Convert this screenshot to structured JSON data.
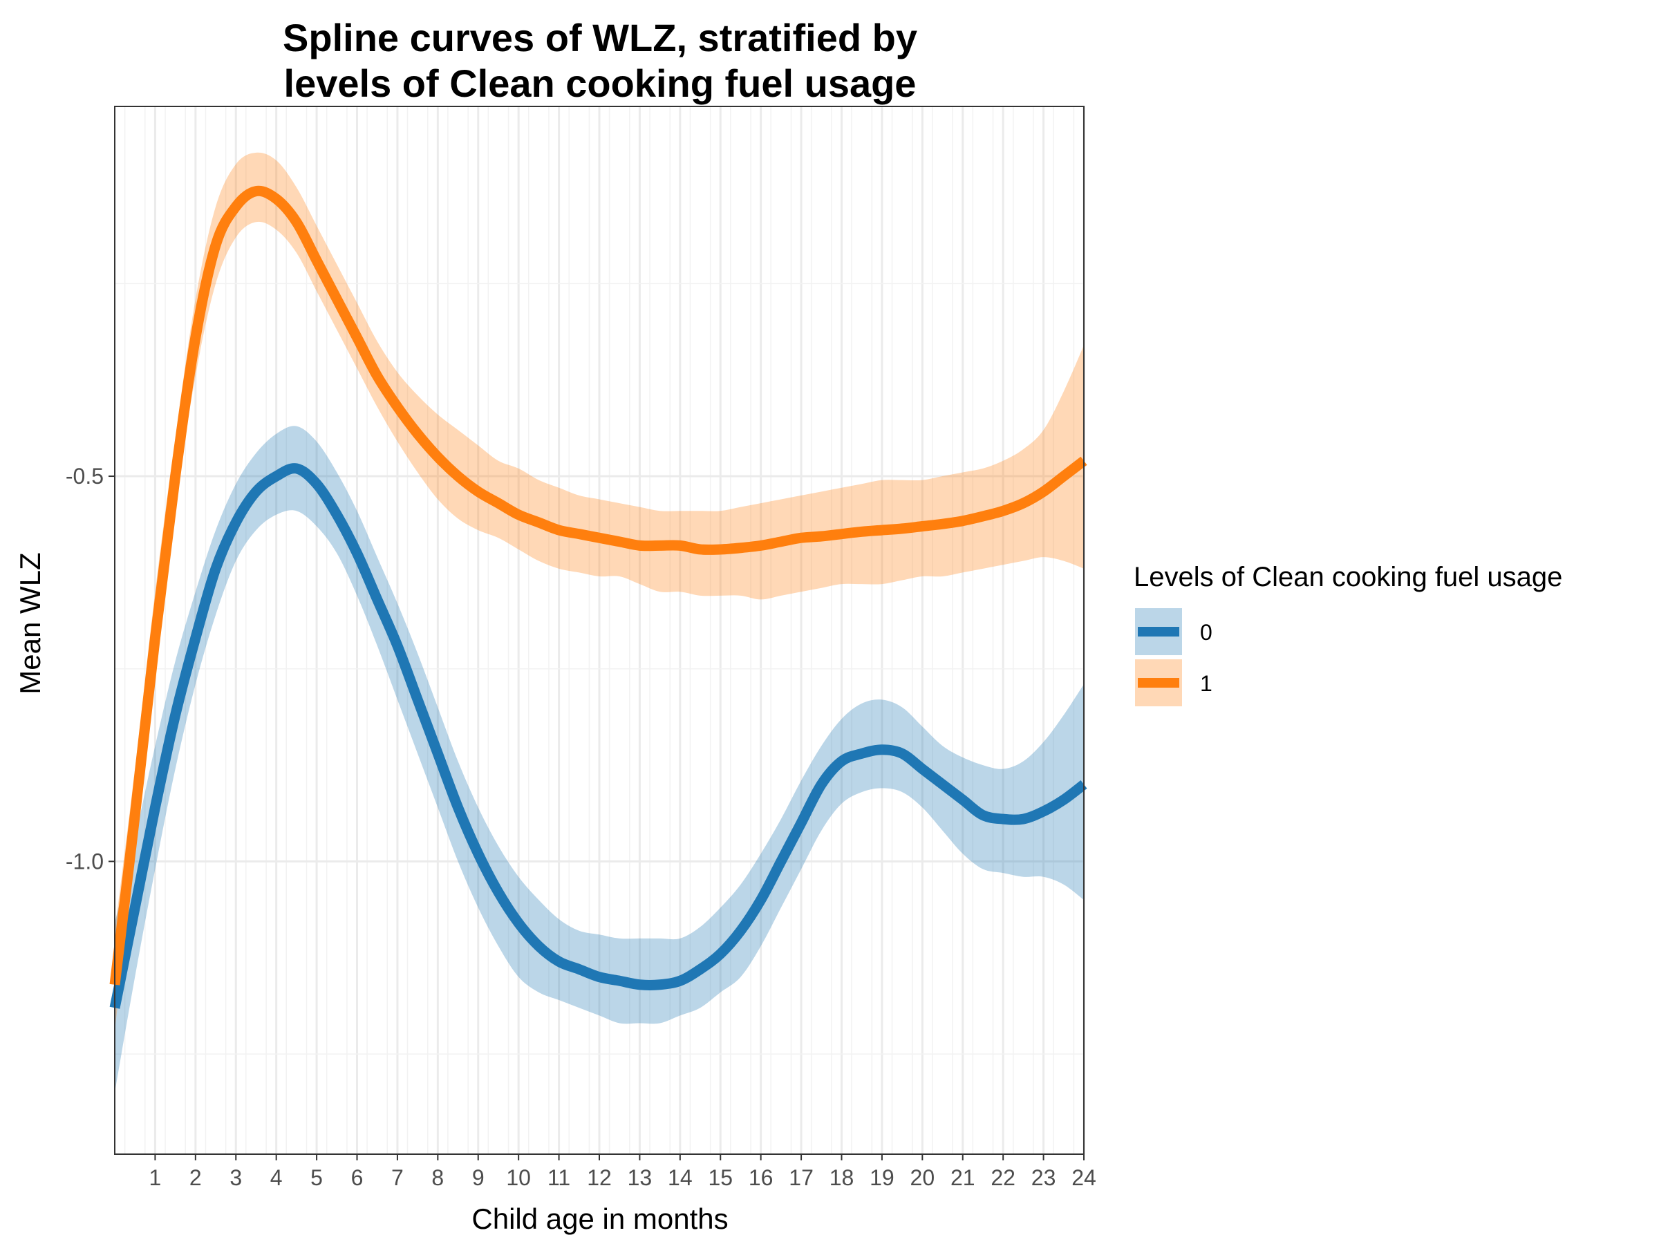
{
  "chart_data": {
    "type": "line",
    "title_lines": [
      "Spline curves of WLZ, stratified by",
      "levels of Clean cooking fuel usage"
    ],
    "xlabel": "Child age in months",
    "ylabel": "Mean WLZ",
    "xlim": [
      0,
      24
    ],
    "ylim": [
      -1.38,
      -0.02
    ],
    "x_ticks": [
      1,
      2,
      3,
      4,
      5,
      6,
      7,
      8,
      9,
      10,
      11,
      12,
      13,
      14,
      15,
      16,
      17,
      18,
      19,
      20,
      21,
      22,
      23,
      24
    ],
    "x_tick_labels": [
      "1",
      "2",
      "3",
      "4",
      "5",
      "6",
      "7",
      "8",
      "9",
      "10",
      "11",
      "12",
      "13",
      "14",
      "15",
      "16",
      "17",
      "18",
      "19",
      "20",
      "21",
      "22",
      "23",
      "24"
    ],
    "y_ticks": [
      -0.5,
      -1.0
    ],
    "y_tick_labels": [
      "-0.5",
      "-1.0"
    ],
    "y_minor_ticks": [
      -0.25,
      -0.75,
      -1.25
    ],
    "grid": true,
    "legend": {
      "title": "Levels of Clean cooking fuel usage",
      "position": "right"
    },
    "series": [
      {
        "name": "0",
        "color": "#1f77b4",
        "ribbon_color": "#1f77b4",
        "x": [
          0,
          0.5,
          1,
          1.5,
          2,
          2.5,
          3,
          3.5,
          4,
          4.5,
          5,
          5.5,
          6,
          6.5,
          7,
          7.5,
          8,
          8.5,
          9,
          9.5,
          10,
          10.5,
          11,
          11.5,
          12,
          12.5,
          13,
          13.5,
          14,
          14.5,
          15,
          15.5,
          16,
          16.5,
          17,
          17.5,
          18,
          18.5,
          19,
          19.5,
          20,
          20.5,
          21,
          21.5,
          22,
          22.5,
          23,
          23.5,
          24
        ],
        "y": [
          -1.19,
          -1.06,
          -0.93,
          -0.81,
          -0.71,
          -0.62,
          -0.56,
          -0.52,
          -0.5,
          -0.49,
          -0.51,
          -0.55,
          -0.6,
          -0.66,
          -0.72,
          -0.79,
          -0.86,
          -0.93,
          -0.99,
          -1.04,
          -1.08,
          -1.11,
          -1.13,
          -1.14,
          -1.15,
          -1.155,
          -1.16,
          -1.16,
          -1.155,
          -1.14,
          -1.12,
          -1.09,
          -1.05,
          -1.0,
          -0.95,
          -0.9,
          -0.87,
          -0.86,
          -0.855,
          -0.86,
          -0.88,
          -0.9,
          -0.92,
          -0.94,
          -0.945,
          -0.945,
          -0.935,
          -0.92,
          -0.9
        ],
        "lower": [
          -1.3,
          -1.15,
          -1.01,
          -0.88,
          -0.77,
          -0.68,
          -0.61,
          -0.57,
          -0.55,
          -0.545,
          -0.565,
          -0.6,
          -0.655,
          -0.72,
          -0.79,
          -0.86,
          -0.93,
          -1.0,
          -1.06,
          -1.11,
          -1.15,
          -1.17,
          -1.18,
          -1.19,
          -1.2,
          -1.21,
          -1.21,
          -1.21,
          -1.2,
          -1.19,
          -1.17,
          -1.15,
          -1.11,
          -1.06,
          -1.01,
          -0.96,
          -0.925,
          -0.91,
          -0.905,
          -0.91,
          -0.93,
          -0.96,
          -0.99,
          -1.01,
          -1.015,
          -1.02,
          -1.02,
          -1.03,
          -1.05
        ],
        "upper": [
          -1.08,
          -0.97,
          -0.85,
          -0.74,
          -0.65,
          -0.57,
          -0.51,
          -0.47,
          -0.445,
          -0.435,
          -0.455,
          -0.495,
          -0.545,
          -0.605,
          -0.665,
          -0.73,
          -0.8,
          -0.87,
          -0.93,
          -0.98,
          -1.02,
          -1.05,
          -1.075,
          -1.09,
          -1.095,
          -1.1,
          -1.1,
          -1.1,
          -1.1,
          -1.085,
          -1.06,
          -1.03,
          -0.99,
          -0.945,
          -0.895,
          -0.85,
          -0.815,
          -0.795,
          -0.79,
          -0.8,
          -0.825,
          -0.85,
          -0.865,
          -0.875,
          -0.88,
          -0.87,
          -0.845,
          -0.81,
          -0.77
        ]
      },
      {
        "name": "1",
        "color": "#ff7f0e",
        "ribbon_color": "#ff7f0e",
        "x": [
          0,
          0.5,
          1,
          1.5,
          2,
          2.5,
          3,
          3.5,
          4,
          4.5,
          5,
          5.5,
          6,
          6.5,
          7,
          7.5,
          8,
          8.5,
          9,
          9.5,
          10,
          10.5,
          11,
          11.5,
          12,
          12.5,
          13,
          13.5,
          14,
          14.5,
          15,
          15.5,
          16,
          16.5,
          17,
          17.5,
          18,
          18.5,
          19,
          19.5,
          20,
          20.5,
          21,
          21.5,
          22,
          22.5,
          23,
          23.5,
          24
        ],
        "y": [
          -1.16,
          -0.94,
          -0.71,
          -0.5,
          -0.32,
          -0.2,
          -0.15,
          -0.13,
          -0.14,
          -0.17,
          -0.22,
          -0.27,
          -0.32,
          -0.37,
          -0.41,
          -0.445,
          -0.475,
          -0.5,
          -0.52,
          -0.535,
          -0.55,
          -0.56,
          -0.57,
          -0.575,
          -0.58,
          -0.585,
          -0.59,
          -0.59,
          -0.59,
          -0.595,
          -0.595,
          -0.593,
          -0.59,
          -0.585,
          -0.58,
          -0.578,
          -0.575,
          -0.572,
          -0.57,
          -0.568,
          -0.565,
          -0.562,
          -0.558,
          -0.552,
          -0.545,
          -0.535,
          -0.52,
          -0.5,
          -0.48
        ],
        "lower": [
          -1.22,
          -0.99,
          -0.76,
          -0.54,
          -0.37,
          -0.25,
          -0.19,
          -0.17,
          -0.18,
          -0.21,
          -0.26,
          -0.31,
          -0.36,
          -0.41,
          -0.455,
          -0.495,
          -0.53,
          -0.555,
          -0.57,
          -0.58,
          -0.595,
          -0.61,
          -0.62,
          -0.625,
          -0.63,
          -0.63,
          -0.64,
          -0.65,
          -0.65,
          -0.655,
          -0.655,
          -0.655,
          -0.66,
          -0.655,
          -0.65,
          -0.645,
          -0.64,
          -0.64,
          -0.64,
          -0.635,
          -0.63,
          -0.63,
          -0.625,
          -0.62,
          -0.615,
          -0.61,
          -0.605,
          -0.61,
          -0.62
        ],
        "upper": [
          -1.09,
          -0.88,
          -0.65,
          -0.45,
          -0.27,
          -0.15,
          -0.095,
          -0.08,
          -0.09,
          -0.125,
          -0.175,
          -0.225,
          -0.275,
          -0.325,
          -0.365,
          -0.395,
          -0.42,
          -0.44,
          -0.46,
          -0.48,
          -0.49,
          -0.505,
          -0.515,
          -0.525,
          -0.53,
          -0.535,
          -0.54,
          -0.545,
          -0.545,
          -0.545,
          -0.545,
          -0.54,
          -0.535,
          -0.53,
          -0.525,
          -0.52,
          -0.515,
          -0.51,
          -0.505,
          -0.505,
          -0.505,
          -0.5,
          -0.495,
          -0.49,
          -0.48,
          -0.465,
          -0.44,
          -0.39,
          -0.33
        ]
      }
    ]
  }
}
